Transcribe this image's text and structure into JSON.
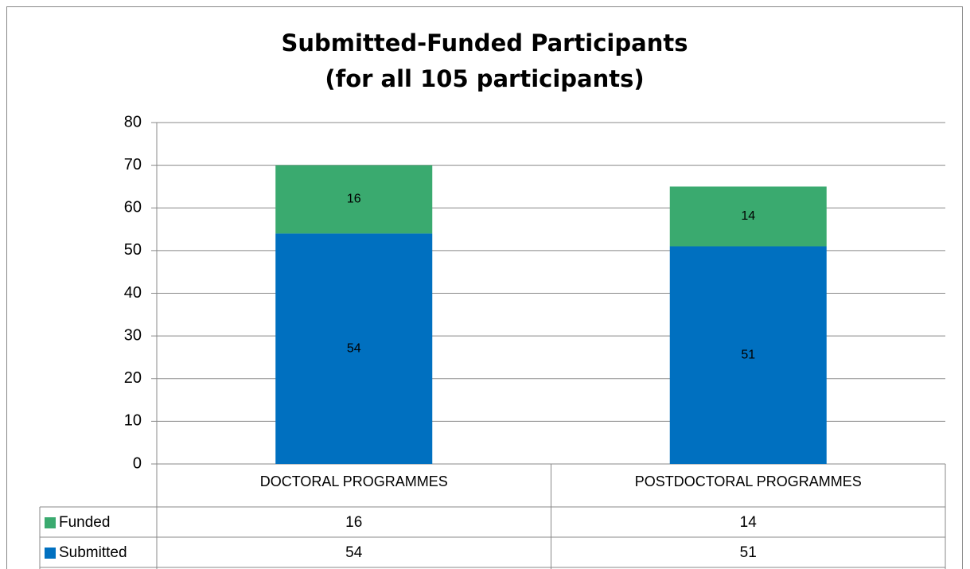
{
  "chart_data": {
    "type": "stacked-bar",
    "title": "Submitted-Funded Participants",
    "subtitle": "(for all 105 participants)",
    "categories": [
      "DOCTORAL PROGRAMMES",
      "POSTDOCTORAL PROGRAMMES"
    ],
    "series": [
      {
        "name": "Submitted",
        "color": "#0070c0",
        "values": [
          54,
          51
        ]
      },
      {
        "name": "Funded",
        "color": "#3aaa6f",
        "values": [
          16,
          14
        ]
      }
    ],
    "ylim": [
      0,
      80
    ],
    "yticks": [
      0,
      10,
      20,
      30,
      40,
      50,
      60,
      70,
      80
    ],
    "grid": true,
    "data_table": true
  }
}
